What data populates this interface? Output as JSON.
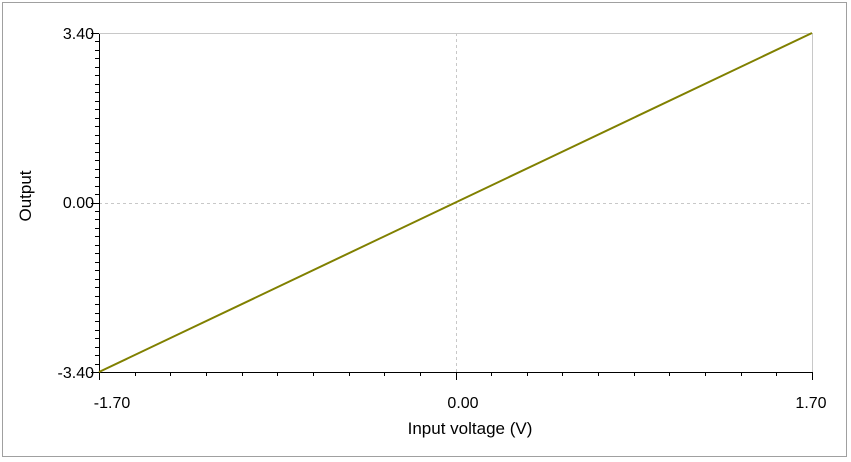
{
  "chart_data": {
    "type": "line",
    "xlabel": "Input voltage (V)",
    "ylabel": "Output",
    "xlim": [
      -1.7,
      1.7
    ],
    "ylim": [
      -3.4,
      3.4
    ],
    "x_ticks": [
      "-1.70",
      "0.00",
      "1.70"
    ],
    "y_ticks": [
      "3.40",
      "0.00",
      "-3.40"
    ],
    "grid": true,
    "series": [
      {
        "x": [
          -1.7,
          -1.275,
          -0.85,
          -0.425,
          0.0,
          0.425,
          0.85,
          1.275,
          1.7
        ],
        "values": [
          -3.4,
          -2.55,
          -1.7,
          -0.85,
          0.0,
          0.85,
          1.7,
          2.55,
          3.4
        ],
        "color": "#808000"
      }
    ]
  }
}
